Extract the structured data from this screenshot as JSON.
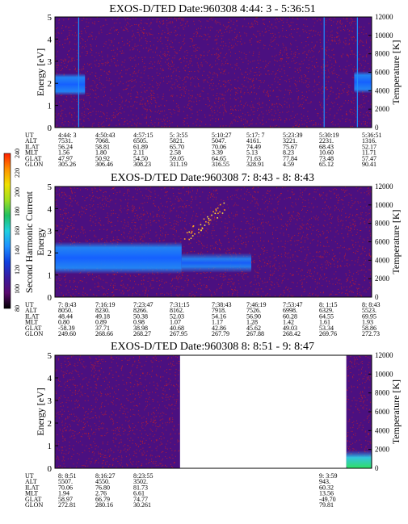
{
  "colors": {
    "background": "#ffffff",
    "spectrogram_background": "#4b1080",
    "noise_red": "#cc2020",
    "band_core": "#1560ff",
    "band_edge": "#1e90ff",
    "band_cyan": "#30d8e8",
    "band_green": "#30e060"
  },
  "colorbar": {
    "label": "Second Harmonic Current",
    "ticks": [
      "80",
      "100",
      "120",
      "140",
      "160",
      "180",
      "200",
      "220",
      "240"
    ],
    "min": 80,
    "max": 240,
    "colors": [
      "#000000",
      "#5a0a6e",
      "#3a1aa0",
      "#1040e0",
      "#1e90ff",
      "#20d0e0",
      "#20c060",
      "#a0e020",
      "#f0e000",
      "#ff9000",
      "#ff2000"
    ]
  },
  "row_labels": [
    "UT",
    "ALT",
    "ILAT",
    "MLT",
    "GLAT",
    "GLON"
  ],
  "chart_data": [
    {
      "type": "heatmap",
      "title": "EXOS-D/TED   Date:960308  4:44: 3 - 5:36:51",
      "ylabel": "Energy [eV]",
      "ylabel_right": "Temperature [K]",
      "ylim": [
        0,
        5
      ],
      "ylim_right": [
        0,
        12000
      ],
      "yticks": [
        "0",
        "1",
        "2",
        "3",
        "4",
        "5"
      ],
      "yticks_right": [
        "0",
        "2000",
        "4000",
        "6000",
        "8000",
        "10000",
        "12000"
      ],
      "coverage": [
        [
          0,
          1
        ]
      ],
      "bands": [
        {
          "x0": 0.0,
          "x1": 0.095,
          "e_low": 1.45,
          "e_high": 2.45,
          "intensity": "high"
        },
        {
          "x0": 0.945,
          "x1": 1.0,
          "e_low": 1.55,
          "e_high": 2.55,
          "intensity": "high"
        }
      ],
      "vlines": [
        0.075,
        0.85,
        0.955
      ],
      "table": [
        [
          "4:44: 3",
          "4:50:43",
          "4:57:15",
          "5: 3:55",
          "5:10:27",
          "5:17: 7",
          "5:23:39",
          "5:30:19",
          "5:36:51"
        ],
        [
          "7531.",
          "7068.",
          "6505.",
          "5821.",
          "5047.",
          "4161.",
          "3221.",
          "2231.",
          "1316."
        ],
        [
          "56.24",
          "58.81",
          "61.89",
          "65.70",
          "70.06",
          "74.49",
          "75.67",
          "68.43",
          "52.17"
        ],
        [
          "1.56",
          "1.80",
          "2.11",
          "2.58",
          "3.39",
          "5.13",
          "8.23",
          "10.60",
          "11.71"
        ],
        [
          "47.97",
          "50.92",
          "54.50",
          "59.05",
          "64.65",
          "71.63",
          "77.84",
          "73.48",
          "57.47"
        ],
        [
          "305.26",
          "306.46",
          "308.23",
          "311.19",
          "316.55",
          "328.91",
          "4.59",
          "65.12",
          "90.41"
        ]
      ]
    },
    {
      "type": "heatmap",
      "title": "EXOS-D/TED   Date:960308  7: 8:43 - 8: 8:43",
      "ylabel": "Energy",
      "ylabel_right": "Temperature [K]",
      "ylim": [
        0,
        5
      ],
      "ylim_right": [
        0,
        12000
      ],
      "yticks": [
        "0",
        "1",
        "2",
        "3",
        "4",
        "5"
      ],
      "yticks_right": [
        "0",
        "2000",
        "4000",
        "6000",
        "8000",
        "10000",
        "12000"
      ],
      "coverage": [
        [
          0,
          1
        ]
      ],
      "bands": [
        {
          "x0": 0.0,
          "x1": 0.4,
          "e_low": 1.05,
          "e_high": 2.5,
          "intensity": "high"
        },
        {
          "x0": 0.4,
          "x1": 0.62,
          "e_low": 1.1,
          "e_high": 2.0,
          "intensity": "medium"
        }
      ],
      "scatter": {
        "x0": 0.4,
        "x1": 0.55,
        "e0": 2.6,
        "e1": 4.3
      },
      "vlines": [],
      "table": [
        [
          "7: 8:43",
          "7:16:19",
          "7:23:47",
          "7:31:15",
          "7:38:43",
          "7:46:19",
          "7:53:47",
          "8: 1:15",
          "8: 8:43"
        ],
        [
          "8050.",
          "8230.",
          "8266.",
          "8162.",
          "7918.",
          "7526.",
          "6998.",
          "6329.",
          "5523."
        ],
        [
          "48.44",
          "49.18",
          "50.38",
          "52.03",
          "54.16",
          "56.90",
          "60.28",
          "64.55",
          "69.95"
        ],
        [
          "0.80",
          "0.89",
          "0.98",
          "1.07",
          "1.17",
          "1.28",
          "1.42",
          "1.61",
          "1.93"
        ],
        [
          "-58.39",
          "37.71",
          "38.98",
          "40.68",
          "42.86",
          "45.62",
          "49.03",
          "53.34",
          "58.86"
        ],
        [
          "249.60",
          "268.66",
          "268.27",
          "267.95",
          "267.79",
          "267.88",
          "268.42",
          "269.76",
          "272.73"
        ]
      ]
    },
    {
      "type": "heatmap",
      "title": "EXOS-D/TED   Date:960308  8: 8:51 - 9: 8:47",
      "ylabel": "Energy [eV]",
      "ylabel_right": "Temperature [K]",
      "ylim": [
        0,
        5
      ],
      "ylim_right": [
        0,
        12000
      ],
      "yticks": [
        "0",
        "1",
        "2",
        "3",
        "4",
        "5"
      ],
      "yticks_right": [
        "0",
        "2000",
        "4000",
        "6000",
        "8000",
        "10000",
        "12000"
      ],
      "coverage": [
        [
          0,
          0.395
        ],
        [
          0.92,
          1
        ]
      ],
      "bands": [
        {
          "x0": 0.92,
          "x1": 1.0,
          "e_low": 0.0,
          "e_high": 0.8,
          "intensity": "green"
        }
      ],
      "vlines": [],
      "table": [
        [
          "8: 8:51",
          "8:16:27",
          "8:23:55",
          "",
          "",
          "",
          "",
          "9: 3:59",
          ""
        ],
        [
          "5507.",
          "4550.",
          "3502.",
          "",
          "",
          "",
          "",
          "943.",
          ""
        ],
        [
          "70.06",
          "76.80",
          "81.73",
          "",
          "",
          "",
          "",
          "60.32",
          ""
        ],
        [
          "1.94",
          "2.76",
          "6.61",
          "",
          "",
          "",
          "",
          "13.56",
          ""
        ],
        [
          "58.97",
          "66.79",
          "74.77",
          "",
          "",
          "",
          "",
          "-49.70",
          ""
        ],
        [
          "272.81",
          "280.16",
          "30.261",
          "",
          "",
          "",
          "",
          "79.81",
          ""
        ]
      ]
    }
  ]
}
